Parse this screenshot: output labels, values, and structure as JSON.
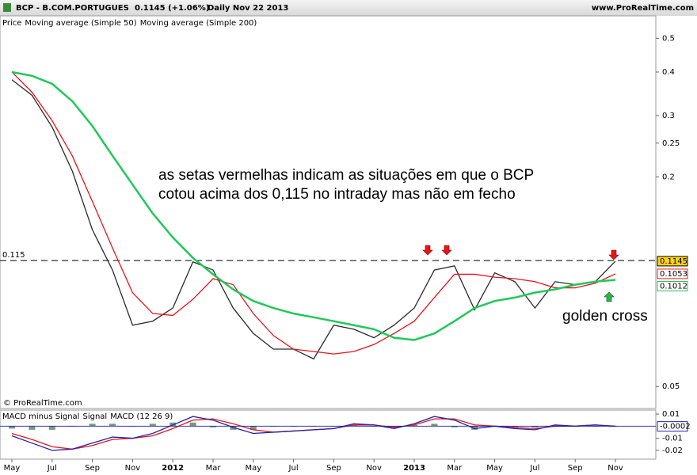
{
  "header": {
    "symbol": "BCP - B.COM.PORTUGUES",
    "quote": "0.1145 (+1.06%)",
    "period": "Daily  Nov 22 2013",
    "site": "www.ProRealTime.com"
  },
  "chart_data": [
    {
      "type": "line",
      "log_scale": true,
      "copyright": "© ProRealTime.com",
      "annotations": [
        "as setas vermelhas indicam as situações em que o BCP",
        "cotou acima dos 0,115 no intraday mas não em fecho",
        "golden cross"
      ],
      "hline": 0.115,
      "categories": [
        "May",
        null,
        "Jul",
        null,
        "Sep",
        null,
        "Nov",
        null,
        "2012",
        null,
        "Mar",
        null,
        "May",
        null,
        "Jul",
        null,
        "Sep",
        null,
        "Nov",
        null,
        "2013",
        null,
        "Mar",
        null,
        "May",
        null,
        "Jul",
        null,
        "Sep",
        null,
        "Nov"
      ],
      "series": [
        {
          "name": "Price",
          "color": "#2a2a2a",
          "values": [
            0.38,
            0.343,
            0.278,
            0.208,
            0.141,
            0.108,
            0.075,
            0.077,
            0.084,
            0.114,
            0.108,
            0.084,
            0.071,
            0.064,
            0.064,
            0.06,
            0.075,
            0.073,
            0.069,
            0.075,
            0.084,
            0.108,
            0.111,
            0.083,
            0.106,
            0.1,
            0.084,
            0.1,
            0.098,
            0.1,
            0.1145
          ]
        },
        {
          "name": "Moving average (Simple 50)",
          "color": "#e8141a",
          "values": [
            0.4,
            0.35,
            0.29,
            0.23,
            0.17,
            0.125,
            0.093,
            0.081,
            0.08,
            0.089,
            0.102,
            0.098,
            0.081,
            0.07,
            0.064,
            0.063,
            0.062,
            0.063,
            0.066,
            0.071,
            0.077,
            0.09,
            0.105,
            0.105,
            0.103,
            0.102,
            0.1,
            0.096,
            0.096,
            0.099,
            0.1053
          ]
        },
        {
          "name": "Moving average (Simple 200)",
          "color": "#1ec95a",
          "values": [
            0.4,
            0.39,
            0.37,
            0.33,
            0.28,
            0.23,
            0.19,
            0.157,
            0.134,
            0.117,
            0.105,
            0.095,
            0.088,
            0.084,
            0.081,
            0.079,
            0.077,
            0.075,
            0.073,
            0.069,
            0.068,
            0.071,
            0.077,
            0.084,
            0.088,
            0.09,
            0.093,
            0.095,
            0.098,
            0.1,
            0.1012
          ]
        }
      ],
      "ylim": [
        0.047,
        0.58
      ],
      "yticks": [
        0.5,
        0.4,
        0.3,
        0.25,
        0.2,
        0.05
      ]
    },
    {
      "type": "line",
      "series": [
        {
          "name": "MACD minus Signal",
          "kind": "bar",
          "color": "#7a9a7a",
          "values": [
            -0.002,
            -0.003,
            -0.003,
            0,
            0.002,
            0.002,
            0,
            0.002,
            0.003,
            0.003,
            -0.001,
            -0.003,
            -0.003,
            0,
            0,
            0,
            0,
            0.001,
            0,
            -0.001,
            0.001,
            0.002,
            -0.001,
            -0.003,
            0,
            -0.001,
            -0.001,
            0.001,
            0,
            0,
            -0.0002
          ]
        },
        {
          "name": "Signal",
          "color": "#e8141a",
          "values": [
            -0.006,
            -0.011,
            -0.017,
            -0.019,
            -0.016,
            -0.011,
            -0.01,
            -0.008,
            -0.002,
            0.005,
            0.006,
            0.002,
            -0.003,
            -0.005,
            -0.004,
            -0.003,
            -0.002,
            0.001,
            0.001,
            -0.001,
            0.001,
            0.006,
            0.006,
            0.001,
            0,
            -0.001,
            -0.002,
            0,
            0,
            0.001,
            0
          ]
        },
        {
          "name": "MACD (12 26 9)",
          "color": "#2222aa",
          "values": [
            -0.008,
            -0.014,
            -0.02,
            -0.019,
            -0.014,
            -0.009,
            -0.01,
            -0.006,
            0.001,
            0.008,
            0.005,
            -0.001,
            -0.006,
            -0.005,
            -0.004,
            -0.003,
            -0.002,
            0.002,
            0.001,
            -0.002,
            0.002,
            0.008,
            0.005,
            -0.002,
            0,
            -0.002,
            -0.003,
            0.001,
            0,
            0.001,
            -0.0002
          ]
        }
      ],
      "ylim": [
        -0.026,
        0.012
      ],
      "yticks": [
        0.01,
        -0.01,
        -0.02
      ]
    }
  ]
}
